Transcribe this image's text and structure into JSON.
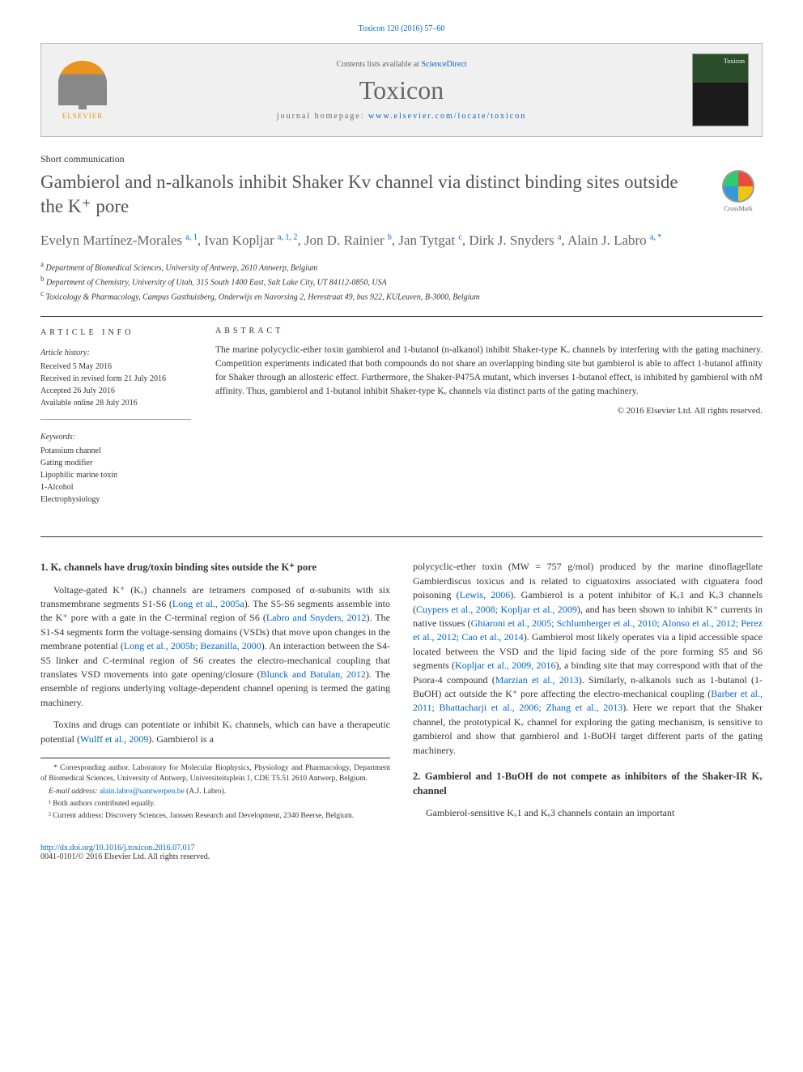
{
  "top_reference": "Toxicon 120 (2016) 57–60",
  "header": {
    "contents_label": "Contents lists available at ",
    "contents_link": "ScienceDirect",
    "journal": "Toxicon",
    "homepage_label": "journal homepage: ",
    "homepage_url": "www.elsevier.com/locate/toxicon",
    "publisher": "ELSEVIER",
    "cover_label": "Toxicon"
  },
  "article_type": "Short communication",
  "title": "Gambierol and n-alkanols inhibit Shaker Kv channel via distinct binding sites outside the K⁺ pore",
  "crossmark": "CrossMark",
  "authors_html": "Evelyn Martínez-Morales <sup>a, 1</sup>, Ivan Kopljar <sup>a, 1, 2</sup>, Jon D. Rainier <sup>b</sup>, Jan Tytgat <sup>c</sup>, Dirk J. Snyders <sup>a</sup>, Alain J. Labro <sup>a, *</sup>",
  "affiliations": {
    "a": "Department of Biomedical Sciences, University of Antwerp, 2610 Antwerp, Belgium",
    "b": "Department of Chemistry, University of Utah, 315 South 1400 East, Salt Lake City, UT 84112-0850, USA",
    "c": "Toxicology & Pharmacology, Campus Gasthuisberg, Onderwijs en Navorsing 2, Herestraat 49, bus 922, KULeuven, B-3000, Belgium"
  },
  "info_heading": "ARTICLE INFO",
  "abstract_heading": "ABSTRACT",
  "history": {
    "label": "Article history:",
    "received": "Received 5 May 2016",
    "revised": "Received in revised form 21 July 2016",
    "accepted": "Accepted 26 July 2016",
    "online": "Available online 28 July 2016"
  },
  "keywords": {
    "label": "Keywords:",
    "items": [
      "Potassium channel",
      "Gating modifier",
      "Lipophilic marine toxin",
      "1-Alcohol",
      "Electrophysiology"
    ]
  },
  "abstract": "The marine polycyclic-ether toxin gambierol and 1-butanol (n-alkanol) inhibit Shaker-type Kᵥ channels by interfering with the gating machinery. Competition experiments indicated that both compounds do not share an overlapping binding site but gambierol is able to affect 1-butanol affinity for Shaker through an allosteric effect. Furthermore, the Shaker-P475A mutant, which inverses 1-butanol effect, is inhibited by gambierol with nM affinity. Thus, gambierol and 1-butanol inhibit Shaker-type Kᵥ channels via distinct parts of the gating machinery.",
  "abstract_copyright": "© 2016 Elsevier Ltd. All rights reserved.",
  "section1": {
    "heading": "1. Kᵥ channels have drug/toxin binding sites outside the K⁺ pore",
    "p1": "Voltage-gated K⁺ (Kᵥ) channels are tetramers composed of α-subunits with six transmembrane segments S1-S6 (Long et al., 2005a). The S5-S6 segments assemble into the K⁺ pore with a gate in the C-terminal region of S6 (Labro and Snyders, 2012). The S1-S4 segments form the voltage-sensing domains (VSDs) that move upon changes in the membrane potential (Long et al., 2005b; Bezanilla, 2000). An interaction between the S4-S5 linker and C-terminal region of S6 creates the electro-mechanical coupling that translates VSD movements into gate opening/closure (Blunck and Batulan, 2012). The ensemble of regions underlying voltage-dependent channel opening is termed the gating machinery.",
    "p2": "Toxins and drugs can potentiate or inhibit Kᵥ channels, which can have a therapeutic potential (Wulff et al., 2009). Gambierol is a",
    "p2_cont": "polycyclic-ether toxin (MW = 757 g/mol) produced by the marine dinoflagellate Gambierdiscus toxicus and is related to ciguatoxins associated with ciguatera food poisoning (Lewis, 2006). Gambierol is a potent inhibitor of Kᵥ1 and Kᵥ3 channels (Cuypers et al., 2008; Kopljar et al., 2009), and has been shown to inhibit K⁺ currents in native tissues (Ghiaroni et al., 2005; Schlumberger et al., 2010; Alonso et al., 2012; Perez et al., 2012; Cao et al., 2014). Gambierol most likely operates via a lipid accessible space located between the VSD and the lipid facing side of the pore forming S5 and S6 segments (Kopljar et al., 2009, 2016), a binding site that may correspond with that of the Psora-4 compound (Marzian et al., 2013). Similarly, n-alkanols such as 1-butanol (1-BuOH) act outside the K⁺ pore affecting the electro-mechanical coupling (Barber et al., 2011; Bhattacharji et al., 2006; Zhang et al., 2013). Here we report that the Shaker channel, the prototypical Kᵥ channel for exploring the gating mechanism, is sensitive to gambierol and show that gambierol and 1-BuOH target different parts of the gating machinery."
  },
  "section2": {
    "heading": "2. Gambierol and 1-BuOH do not compete as inhibitors of the Shaker-IR Kᵥ channel",
    "p1": "Gambierol-sensitive Kᵥ1 and Kᵥ3 channels contain an important"
  },
  "footnotes": {
    "corr": "* Corresponding author. Laboratory for Molecular Biophysics, Physiology and Pharmacology, Department of Biomedical Sciences, University of Antwerp, Universiteitsplein 1, CDE T5.51 2610 Antwerp, Belgium.",
    "email_label": "E-mail address: ",
    "email": "alain.labro@uantwerpen.be",
    "email_name": " (A.J. Labro).",
    "note1": "¹ Both authors contributed equally.",
    "note2": "² Current address: Discovery Sciences, Janssen Research and Development, 2340 Beerse, Belgium."
  },
  "footer": {
    "doi": "http://dx.doi.org/10.1016/j.toxicon.2016.07.017",
    "issn": "0041-0101/© 2016 Elsevier Ltd. All rights reserved."
  },
  "colors": {
    "link": "#0066cc",
    "heading_gray": "#555",
    "text": "#333",
    "light_gray": "#666",
    "border": "#333",
    "elsevier_orange": "#e8941e"
  }
}
